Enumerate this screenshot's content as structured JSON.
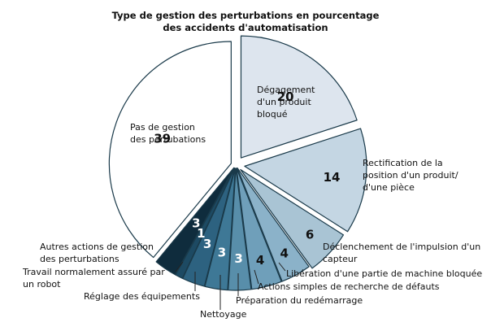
{
  "chart_data": {
    "type": "pie",
    "title_lines": [
      "Type de gestion des perturbations en pourcentage",
      "des accidents d'automatisation"
    ],
    "slices": [
      {
        "value": 20,
        "value_label": "20",
        "label_lines": [
          "Dégagement",
          "d'un produit",
          "bloqué"
        ],
        "color": "#dde5ee"
      },
      {
        "value": 14,
        "value_label": "14",
        "label_lines": [
          "Rectification de la",
          "position d'un produit/",
          "d'une pièce"
        ],
        "color": "#c4d6e3"
      },
      {
        "value": 6,
        "value_label": "6",
        "label_lines": [
          "Déclenchement de l'impulsion d'un",
          "capteur"
        ],
        "color": "#a9c4d4"
      },
      {
        "value": 4,
        "value_label": "4",
        "label_lines": [
          "Libération d'une partie de machine bloquée"
        ],
        "color": "#8bb2c9"
      },
      {
        "value": 4,
        "value_label": "4",
        "label_lines": [
          "Actions simples de recherche de défauts"
        ],
        "color": "#6f9fba"
      },
      {
        "value": 3,
        "value_label": "3",
        "label_lines": [
          "Préparation du redémarrage"
        ],
        "color": "#588eaa"
      },
      {
        "value": 3,
        "value_label": "3",
        "label_lines": [
          "Nettoyage"
        ],
        "color": "#3e7896"
      },
      {
        "value": 3,
        "value_label": "3",
        "label_lines": [
          "Réglage des équipements"
        ],
        "color": "#2d6280"
      },
      {
        "value": 1,
        "value_label": "1",
        "label_lines": [
          "Travail normalement assuré par",
          "un robot"
        ],
        "color": "#1d4a63"
      },
      {
        "value": 3,
        "value_label": "3",
        "label_lines": [
          "Autres actions de gestion",
          "des perturbations"
        ],
        "color": "#0f2c3d"
      },
      {
        "value": 39,
        "value_label": "39",
        "label_lines": [
          "Pas de gestion",
          "des pertubations"
        ],
        "color": "#ffffff"
      }
    ],
    "stroke_color": "#1a3a4a"
  }
}
